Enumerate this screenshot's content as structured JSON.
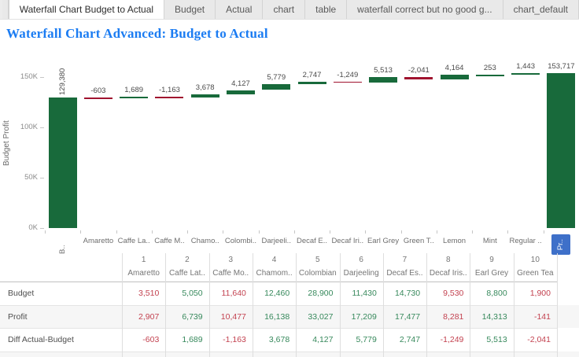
{
  "tabs": {
    "items": [
      {
        "label": "Waterfall Chart Budget to Actual",
        "active": true
      },
      {
        "label": "Budget",
        "active": false
      },
      {
        "label": "Actual",
        "active": false
      },
      {
        "label": "chart",
        "active": false
      },
      {
        "label": "table",
        "active": false
      },
      {
        "label": "waterfall correct but no good g...",
        "active": false
      },
      {
        "label": "chart_default",
        "active": false
      }
    ]
  },
  "title": "Waterfall Chart Advanced: Budget to Actual",
  "colors": {
    "title_blue": "#1b7cf2",
    "bar_positive": "#186a3b",
    "bar_negative": "#a0132f",
    "cell_positive": "#37895c",
    "cell_negative": "#c34250",
    "selected_label_bg": "#3e70c9",
    "band_gray": "#f6f6f6"
  },
  "chart_data": {
    "type": "bar",
    "subtype": "waterfall",
    "ylabel": "Budget Profit",
    "ylim": [
      0,
      160000
    ],
    "grid": false,
    "yticks": [
      {
        "label": "0K",
        "value": 0
      },
      {
        "label": "50K",
        "value": 50000
      },
      {
        "label": "100K",
        "value": 100000
      },
      {
        "label": "150K",
        "value": 150000
      }
    ],
    "categories": [
      {
        "label": "B..",
        "vertical": true,
        "selected": false
      },
      {
        "label": "Amaretto",
        "vertical": false,
        "selected": false
      },
      {
        "label": "Caffe La..",
        "vertical": false,
        "selected": false
      },
      {
        "label": "Caffe M..",
        "vertical": false,
        "selected": false
      },
      {
        "label": "Chamo..",
        "vertical": false,
        "selected": false
      },
      {
        "label": "Colombi..",
        "vertical": false,
        "selected": false
      },
      {
        "label": "Darjeeli..",
        "vertical": false,
        "selected": false
      },
      {
        "label": "Decaf E..",
        "vertical": false,
        "selected": false
      },
      {
        "label": "Decaf Iri..",
        "vertical": false,
        "selected": false
      },
      {
        "label": "Earl Grey",
        "vertical": false,
        "selected": false
      },
      {
        "label": "Green T..",
        "vertical": false,
        "selected": false
      },
      {
        "label": "Lemon",
        "vertical": false,
        "selected": false
      },
      {
        "label": "Mint",
        "vertical": false,
        "selected": false
      },
      {
        "label": "Regular ..",
        "vertical": false,
        "selected": false
      },
      {
        "label": "Pr..",
        "vertical": true,
        "selected": true
      }
    ],
    "bars": [
      {
        "label": "129,380",
        "value": 129380,
        "start": 0,
        "end": 129380,
        "kind": "total",
        "rotated_label": true
      },
      {
        "label": "-603",
        "value": -603,
        "start": 129380,
        "end": 128777,
        "kind": "decrease",
        "rotated_label": false
      },
      {
        "label": "1,689",
        "value": 1689,
        "start": 128777,
        "end": 130466,
        "kind": "increase",
        "rotated_label": false
      },
      {
        "label": "-1,163",
        "value": -1163,
        "start": 130466,
        "end": 129303,
        "kind": "decrease",
        "rotated_label": false
      },
      {
        "label": "3,678",
        "value": 3678,
        "start": 129303,
        "end": 132981,
        "kind": "increase",
        "rotated_label": false
      },
      {
        "label": "4,127",
        "value": 4127,
        "start": 132981,
        "end": 137108,
        "kind": "increase",
        "rotated_label": false
      },
      {
        "label": "5,779",
        "value": 5779,
        "start": 137108,
        "end": 142887,
        "kind": "increase",
        "rotated_label": false
      },
      {
        "label": "2,747",
        "value": 2747,
        "start": 142887,
        "end": 145634,
        "kind": "increase",
        "rotated_label": false
      },
      {
        "label": "-1,249",
        "value": -1249,
        "start": 145634,
        "end": 144385,
        "kind": "decrease",
        "rotated_label": false
      },
      {
        "label": "5,513",
        "value": 5513,
        "start": 144385,
        "end": 149898,
        "kind": "increase",
        "rotated_label": false
      },
      {
        "label": "-2,041",
        "value": -2041,
        "start": 149898,
        "end": 147857,
        "kind": "decrease",
        "rotated_label": false
      },
      {
        "label": "4,164",
        "value": 4164,
        "start": 147857,
        "end": 152021,
        "kind": "increase",
        "rotated_label": false
      },
      {
        "label": "253",
        "value": 253,
        "start": 152021,
        "end": 152274,
        "kind": "increase",
        "rotated_label": false
      },
      {
        "label": "1,443",
        "value": 1443,
        "start": 152274,
        "end": 153717,
        "kind": "increase",
        "rotated_label": false
      },
      {
        "label": "153,717",
        "value": 153717,
        "start": 0,
        "end": 153717,
        "kind": "total",
        "rotated_label": false
      }
    ]
  },
  "table": {
    "col_numbers": [
      "1",
      "2",
      "3",
      "4",
      "5",
      "6",
      "7",
      "8",
      "9",
      "10"
    ],
    "col_names": [
      "Amaretto",
      "Caffe Lat..",
      "Caffe Mo..",
      "Chamom..",
      "Colombian",
      "Darjeeling",
      "Decaf Es..",
      "Decaf Iris..",
      "Earl Grey",
      "Green Tea"
    ],
    "rows": [
      {
        "label": "Budget",
        "values": [
          "3,510",
          "5,050",
          "11,640",
          "12,460",
          "28,900",
          "11,430",
          "14,730",
          "9,530",
          "8,800",
          "1,900"
        ],
        "signs": [
          -1,
          1,
          -1,
          1,
          1,
          1,
          1,
          -1,
          1,
          -1
        ]
      },
      {
        "label": "Profit",
        "values": [
          "2,907",
          "6,739",
          "10,477",
          "16,138",
          "33,027",
          "17,209",
          "17,477",
          "8,281",
          "14,313",
          "-141"
        ],
        "signs": [
          -1,
          1,
          -1,
          1,
          1,
          1,
          1,
          -1,
          1,
          -1
        ]
      },
      {
        "label": "Diff Actual-Budget",
        "values": [
          "-603",
          "1,689",
          "-1,163",
          "3,678",
          "4,127",
          "5,779",
          "2,747",
          "-1,249",
          "5,513",
          "-2,041"
        ],
        "signs": [
          -1,
          1,
          -1,
          1,
          1,
          1,
          1,
          -1,
          1,
          -1
        ]
      }
    ]
  }
}
